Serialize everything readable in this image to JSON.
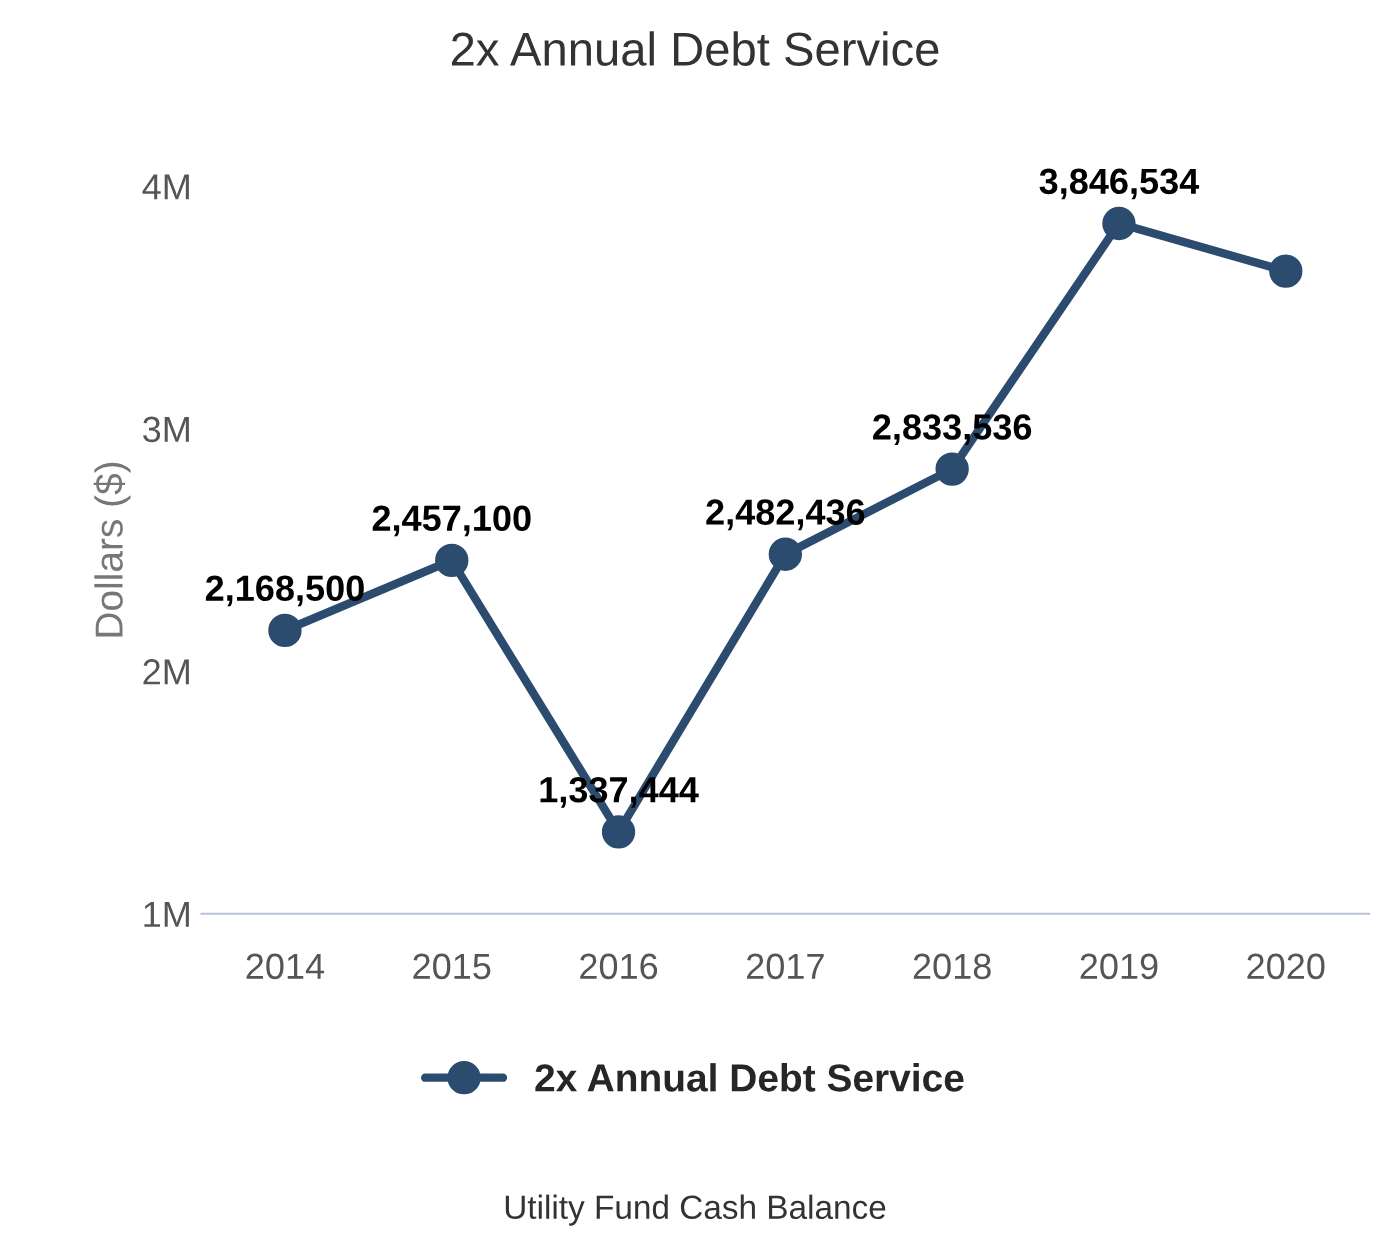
{
  "chart_data": {
    "type": "line",
    "title": "2x Annual Debt Service",
    "ylabel": "Dollars ($)",
    "categories": [
      "2014",
      "2015",
      "2016",
      "2017",
      "2018",
      "2019",
      "2020"
    ],
    "series": [
      {
        "name": "2x Annual Debt Service",
        "color": "#2b4c6f",
        "values": [
          2168500,
          2457100,
          1337444,
          2482436,
          2833536,
          3846534,
          3650000
        ],
        "value_labels": [
          "2,168,500",
          "2,457,100",
          "1,337,444",
          "2,482,436",
          "2,833,536",
          "3,846,534",
          null
        ]
      }
    ],
    "ylim": [
      1000000,
      4000000
    ],
    "yticks": [
      {
        "value": 1000000,
        "label": "1M"
      },
      {
        "value": 2000000,
        "label": "2M"
      },
      {
        "value": 3000000,
        "label": "3M"
      },
      {
        "value": 4000000,
        "label": "4M"
      }
    ],
    "marker": "circle",
    "line_style": "solid",
    "grid": false,
    "legend": "bottom",
    "annotations": [
      "Utility Fund Cash Balance"
    ]
  }
}
